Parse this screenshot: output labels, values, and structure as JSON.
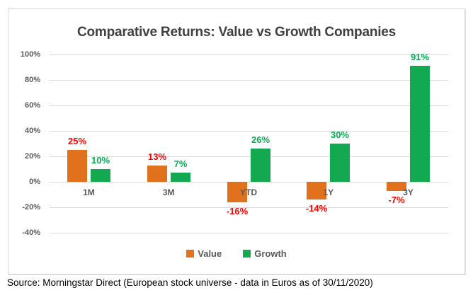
{
  "title": "Comparative Returns: Value vs Growth Companies",
  "source_note": "Source: Morningstar Direct (European stock universe - data in Euros as of 30/11/2020)",
  "colors": {
    "value_bar": "#E2711D",
    "growth_bar": "#12A950",
    "value_label": "#FF0000",
    "growth_label": "#00B050",
    "title_text": "#404040",
    "axis_text": "#595959",
    "gridline": "#D9D9D9",
    "chart_border": "#D9D9D9"
  },
  "legend": {
    "position": "bottom",
    "items": [
      {
        "label": "Value",
        "color": "#E2711D"
      },
      {
        "label": "Growth",
        "color": "#12A950"
      }
    ]
  },
  "chart_data": {
    "type": "bar",
    "title": "Comparative Returns: Value vs Growth Companies",
    "categories": [
      "1M",
      "3M",
      "YTD",
      "1Y",
      "3Y"
    ],
    "series": [
      {
        "name": "Value",
        "values": [
          25,
          13,
          -16,
          -14,
          -7
        ],
        "labels": [
          "25%",
          "13%",
          "-16%",
          "-14%",
          "-7%"
        ],
        "color": "#E2711D",
        "label_color": "#FF0000"
      },
      {
        "name": "Growth",
        "values": [
          10,
          7,
          26,
          30,
          91
        ],
        "labels": [
          "10%",
          "7%",
          "26%",
          "30%",
          "91%"
        ],
        "color": "#12A950",
        "label_color": "#00B050"
      }
    ],
    "xlabel": "",
    "ylabel": "",
    "ylim": [
      -40,
      100
    ],
    "yticks": [
      100,
      80,
      60,
      40,
      20,
      0,
      -20,
      -40
    ],
    "ytick_labels": [
      "100%",
      "80%",
      "60%",
      "40%",
      "20%",
      "0%",
      "-20%",
      "-40%"
    ],
    "grid": true,
    "legend_position": "bottom"
  }
}
